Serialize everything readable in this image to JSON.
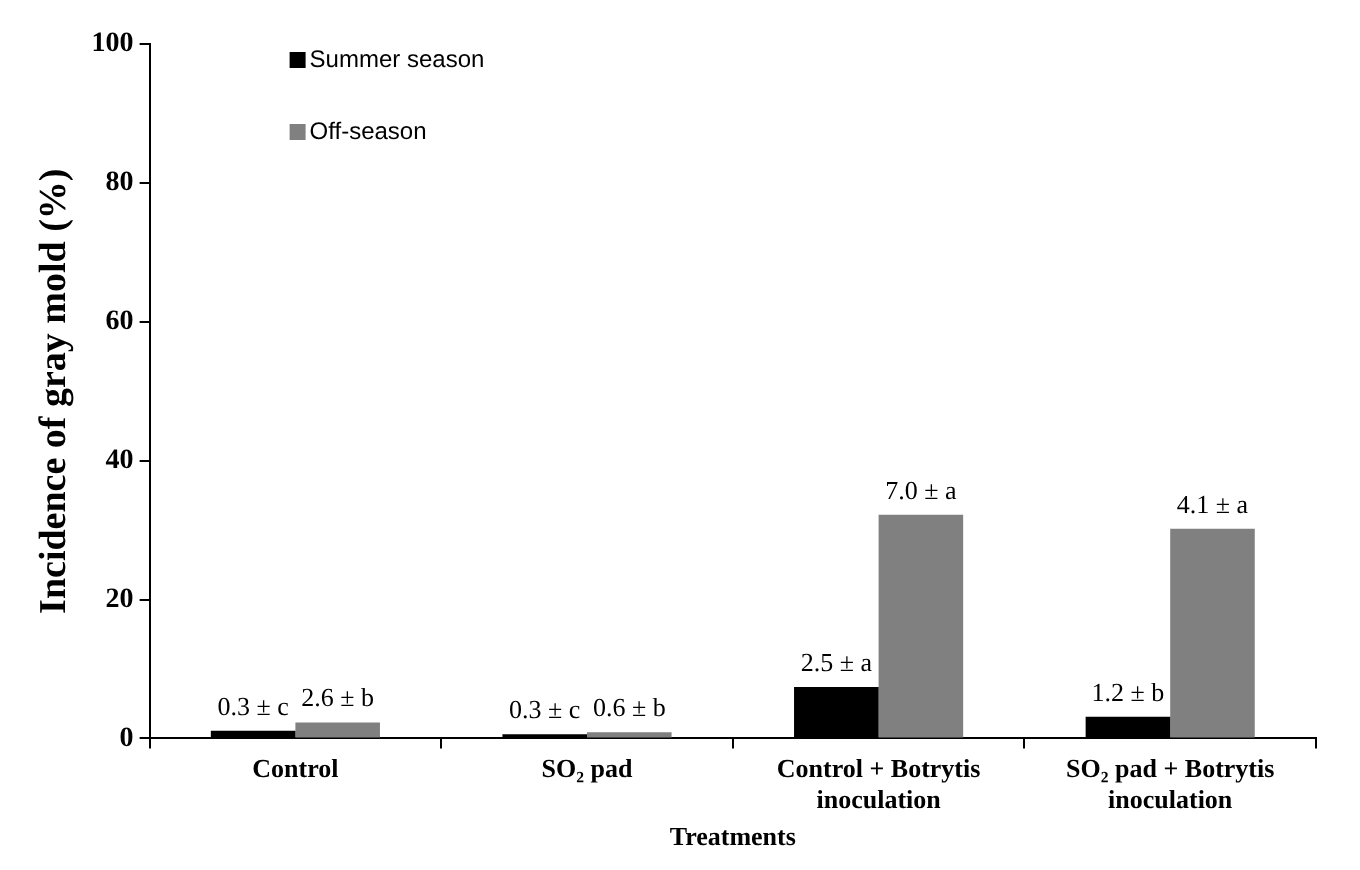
{
  "chart_data": {
    "type": "bar",
    "xlabel": "Treatments",
    "ylabel": "Incidence of gray mold (%)",
    "categories": [
      "Control",
      "SO₂ pad",
      "Control + Botrytis inoculation",
      "SO₂ pad + Botrytis inoculation"
    ],
    "series": [
      {
        "name": "Summer season",
        "color": "#000000",
        "values": [
          1.1,
          0.6,
          7.4,
          3.1
        ]
      },
      {
        "name": "Off-season",
        "color": "#808080",
        "values": [
          2.3,
          0.9,
          32.2,
          30.2
        ]
      }
    ],
    "annotations": [
      {
        "text": "0.3 ± c",
        "x": "Control",
        "y": 1.1
      },
      {
        "text": "2.6 ± b",
        "x": "Control",
        "y": 2.3
      },
      {
        "text": "0.3 ± c",
        "x": "SO₂ pad",
        "y": 0.6
      },
      {
        "text": "0.6 ± b",
        "x": "SO₂ pad",
        "y": 0.9
      },
      {
        "text": "2.5 ± a",
        "x": "Control + Botrytis inoculation",
        "y": 7.4
      },
      {
        "text": "7.0 ± a",
        "x": "Control + Botrytis inoculation",
        "y": 32.2
      },
      {
        "text": "1.2 ± b",
        "x": "SO₂ pad + Botrytis inoculation",
        "y": 3.1
      },
      {
        "text": "4.1 ± a",
        "x": "SO₂ pad + Botrytis inoculation",
        "y": 30.2
      }
    ],
    "ylim": [
      0,
      100
    ],
    "yticks": [
      0,
      20,
      40,
      60,
      80,
      100
    ],
    "grid": false,
    "legend": "top left"
  }
}
